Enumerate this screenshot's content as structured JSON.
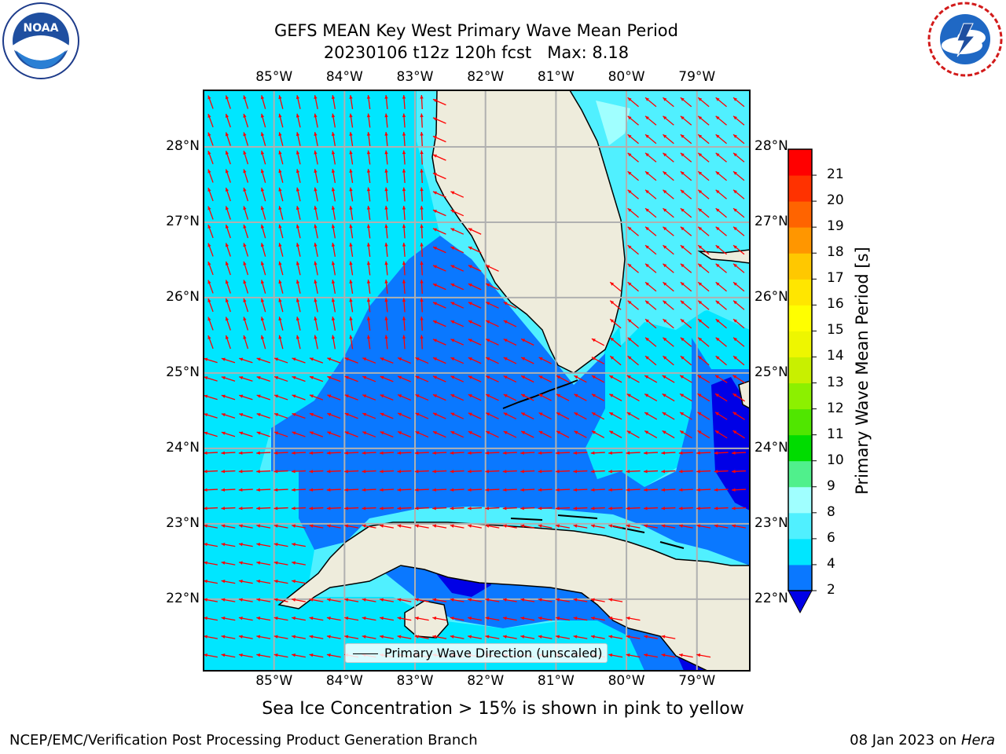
{
  "header": {
    "title_line1": "GEFS MEAN Key West Primary Wave Mean Period",
    "title_line2": "20230106 t12z 120h fcst   Max: 8.18"
  },
  "logos": {
    "left": {
      "name": "noaa-logo",
      "text": "NOAA",
      "ring_text": "NATIONAL OCEANIC AND ATMOSPHERIC ADMINISTRATION · U.S. DEPARTMENT OF COMMERCE"
    },
    "right": {
      "name": "nws-logo",
      "ring_text": "NATIONAL WEATHER SERVICE"
    }
  },
  "map": {
    "lon_labels": [
      "85°W",
      "84°W",
      "83°W",
      "82°W",
      "81°W",
      "80°W",
      "79°W"
    ],
    "lat_labels": [
      "28°N",
      "27°N",
      "26°N",
      "25°N",
      "24°N",
      "23°N",
      "22°N"
    ],
    "lon_range": [
      -86.0,
      -78.25
    ],
    "lat_range": [
      21.05,
      28.75
    ],
    "land_color": "#eeecdc",
    "arrow_color": "#ff0000",
    "grid": true
  },
  "legend": {
    "label": "Primary Wave Direction (unscaled)"
  },
  "colorbar": {
    "title": "Primary Wave Mean Period [s]",
    "ticks": [
      "2",
      "4",
      "6",
      "8",
      "9",
      "10",
      "11",
      "12",
      "13",
      "14",
      "15",
      "16",
      "17",
      "18",
      "19",
      "20",
      "21"
    ],
    "levels": [
      2,
      4,
      6,
      8,
      9,
      10,
      11,
      12,
      13,
      14,
      15,
      16,
      17,
      18,
      19,
      20,
      21
    ],
    "colors": [
      "#0a78ff",
      "#00e6ff",
      "#50f0ff",
      "#a0ffff",
      "#50f08c",
      "#00dc00",
      "#50e600",
      "#8cf000",
      "#c8f000",
      "#eef600",
      "#ffff00",
      "#ffe600",
      "#ffc800",
      "#ff9600",
      "#ff6400",
      "#ff3200",
      "#ff0000"
    ],
    "extend_color": "#0000e6"
  },
  "notes": {
    "sea_ice": "Sea Ice Concentration > 15% is shown in pink to yellow"
  },
  "footer": {
    "left": "NCEP/EMC/Verification Post Processing Product Generation Branch",
    "right_date": "08 Jan 2023 on ",
    "right_host": "Hera"
  }
}
